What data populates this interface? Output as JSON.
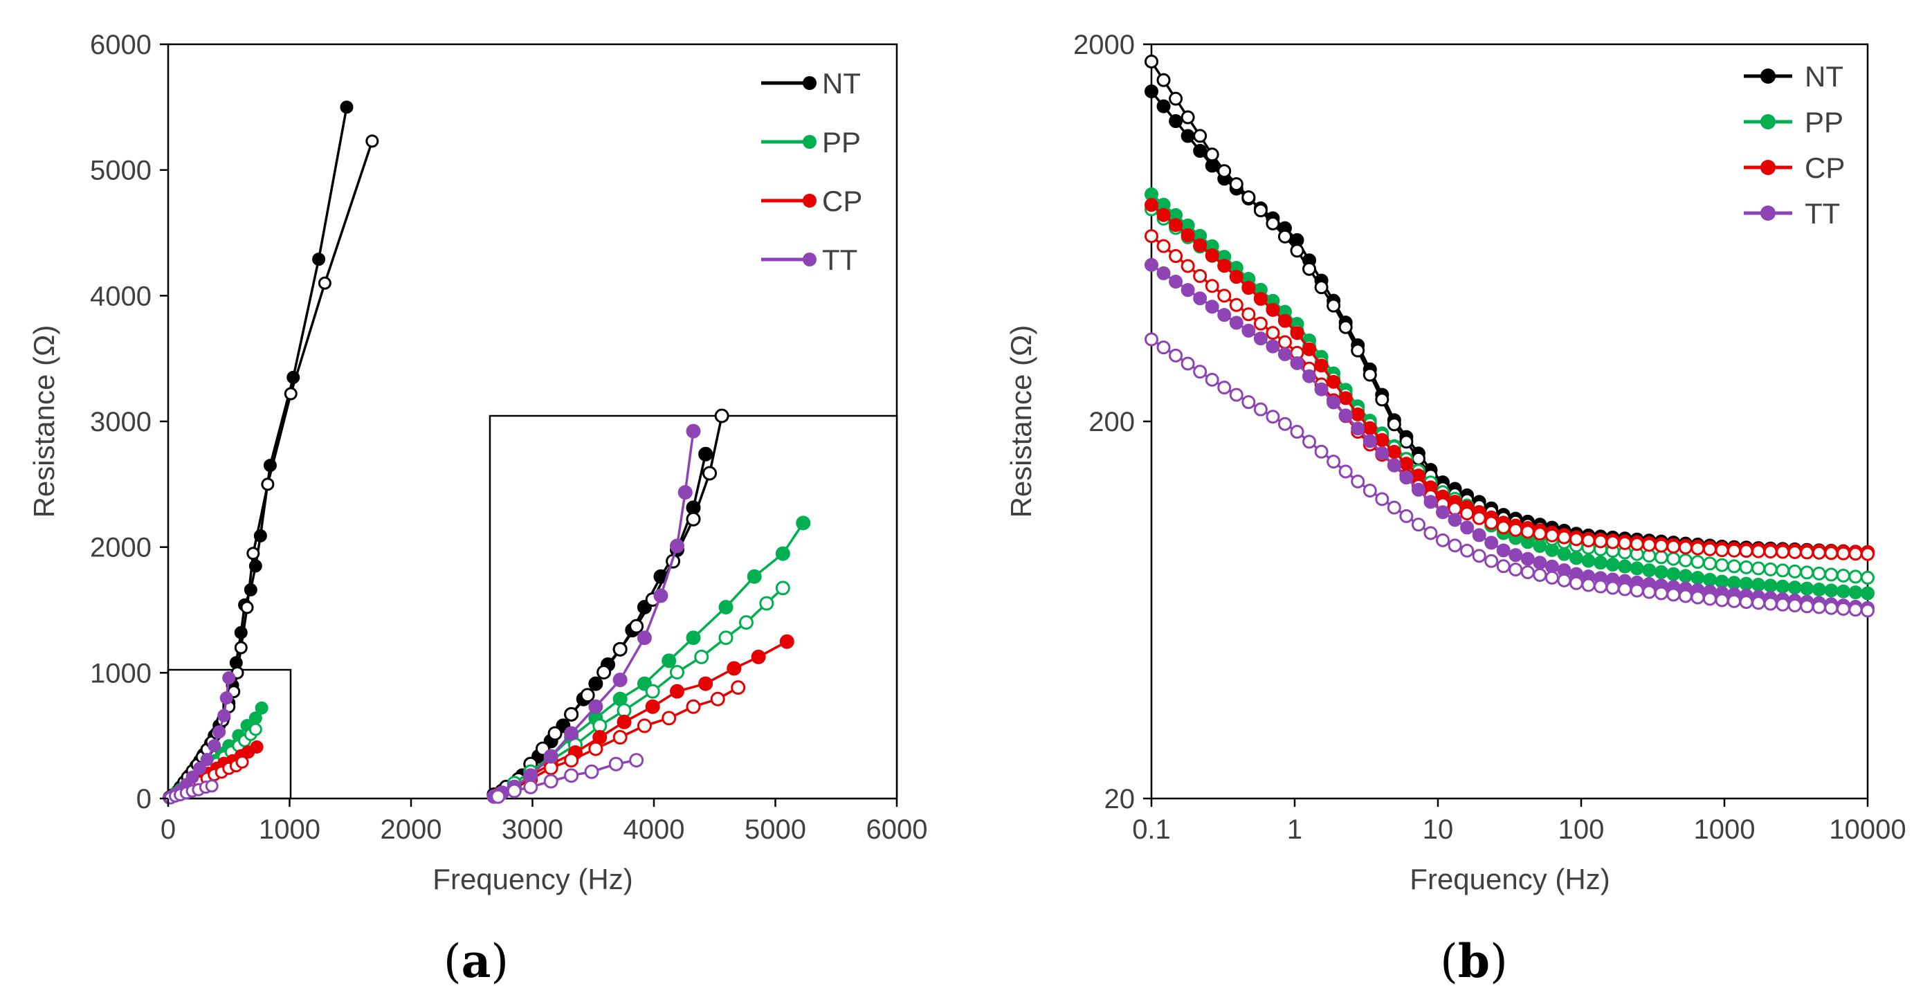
{
  "colors": {
    "NT": "#000000",
    "PP": "#00b050",
    "CP": "#e60000",
    "TT": "#8e44b5",
    "axis": "#000000",
    "text": "#404040"
  },
  "chart_data": [
    {
      "type": "scatter",
      "id": "a",
      "panel_label": "(a)",
      "panel_letter": "a",
      "xlabel": "Frequency (Hz)",
      "ylabel": "Resistance (Ω)",
      "xlim": [
        0,
        6000
      ],
      "ylim": [
        0,
        6000
      ],
      "xticks": [
        "0",
        "1000",
        "2000",
        "3000",
        "4000",
        "5000",
        "6000"
      ],
      "yticks": [
        "0",
        "1000",
        "2000",
        "3000",
        "4000",
        "5000",
        "6000"
      ],
      "legend": [
        "NT",
        "PP",
        "CP",
        "TT"
      ],
      "legend_position": "top-right",
      "inset": {
        "zoom_of_x": [
          0,
          1000
        ],
        "zoom_of_y": [
          0,
          1000
        ],
        "placed_at_x": [
          2650,
          6000
        ],
        "placed_at_y": [
          0,
          3050
        ]
      },
      "series": [
        {
          "name": "NT",
          "filled": true,
          "points": [
            [
              10,
              10
            ],
            [
              30,
              20
            ],
            [
              50,
              30
            ],
            [
              80,
              60
            ],
            [
              100,
              90
            ],
            [
              120,
              110
            ],
            [
              150,
              150
            ],
            [
              180,
              190
            ],
            [
              200,
              220
            ],
            [
              230,
              260
            ],
            [
              260,
              300
            ],
            [
              290,
              350
            ],
            [
              320,
              390
            ],
            [
              350,
              440
            ],
            [
              380,
              500
            ],
            [
              420,
              580
            ],
            [
              460,
              650
            ],
            [
              500,
              760
            ],
            [
              530,
              900
            ],
            [
              560,
              1080
            ],
            [
              600,
              1320
            ],
            [
              630,
              1540
            ],
            [
              680,
              1660
            ],
            [
              720,
              1850
            ],
            [
              760,
              2090
            ],
            [
              840,
              2650
            ],
            [
              1030,
              3350
            ],
            [
              1240,
              4290
            ],
            [
              1470,
              5500
            ]
          ]
        },
        {
          "name": "NT",
          "filled": false,
          "points": [
            [
              10,
              10
            ],
            [
              40,
              30
            ],
            [
              70,
              50
            ],
            [
              100,
              90
            ],
            [
              130,
              130
            ],
            [
              160,
              170
            ],
            [
              200,
              220
            ],
            [
              240,
              270
            ],
            [
              280,
              330
            ],
            [
              320,
              390
            ],
            [
              360,
              450
            ],
            [
              400,
              520
            ],
            [
              450,
              620
            ],
            [
              500,
              730
            ],
            [
              540,
              850
            ],
            [
              570,
              1000
            ],
            [
              600,
              1200
            ],
            [
              650,
              1520
            ],
            [
              700,
              1950
            ],
            [
              820,
              2500
            ],
            [
              1010,
              3220
            ],
            [
              1290,
              4100
            ],
            [
              1680,
              5230
            ]
          ]
        },
        {
          "name": "PP",
          "filled": true,
          "points": [
            [
              20,
              10
            ],
            [
              60,
              40
            ],
            [
              100,
              70
            ],
            [
              150,
              110
            ],
            [
              200,
              160
            ],
            [
              260,
              210
            ],
            [
              320,
              260
            ],
            [
              380,
              300
            ],
            [
              440,
              360
            ],
            [
              500,
              420
            ],
            [
              580,
              500
            ],
            [
              650,
              580
            ],
            [
              720,
              640
            ],
            [
              770,
              720
            ]
          ]
        },
        {
          "name": "PP",
          "filled": false,
          "points": [
            [
              20,
              10
            ],
            [
              60,
              40
            ],
            [
              100,
              70
            ],
            [
              150,
              100
            ],
            [
              210,
              140
            ],
            [
              270,
              190
            ],
            [
              330,
              230
            ],
            [
              400,
              280
            ],
            [
              460,
              330
            ],
            [
              520,
              370
            ],
            [
              580,
              420
            ],
            [
              630,
              460
            ],
            [
              680,
              510
            ],
            [
              720,
              550
            ]
          ]
        },
        {
          "name": "CP",
          "filled": true,
          "points": [
            [
              20,
              10
            ],
            [
              60,
              30
            ],
            [
              100,
              60
            ],
            [
              150,
              90
            ],
            [
              210,
              120
            ],
            [
              270,
              160
            ],
            [
              330,
              200
            ],
            [
              400,
              240
            ],
            [
              460,
              280
            ],
            [
              530,
              300
            ],
            [
              600,
              340
            ],
            [
              660,
              370
            ],
            [
              730,
              410
            ]
          ]
        },
        {
          "name": "CP",
          "filled": false,
          "points": [
            [
              20,
              10
            ],
            [
              60,
              30
            ],
            [
              100,
              50
            ],
            [
              150,
              80
            ],
            [
              200,
              100
            ],
            [
              260,
              130
            ],
            [
              320,
              160
            ],
            [
              380,
              190
            ],
            [
              440,
              210
            ],
            [
              500,
              240
            ],
            [
              560,
              260
            ],
            [
              610,
              290
            ]
          ]
        },
        {
          "name": "TT",
          "filled": true,
          "points": [
            [
              10,
              5
            ],
            [
              30,
              15
            ],
            [
              60,
              30
            ],
            [
              100,
              60
            ],
            [
              150,
              110
            ],
            [
              200,
              170
            ],
            [
              260,
              240
            ],
            [
              320,
              310
            ],
            [
              380,
              420
            ],
            [
              420,
              530
            ],
            [
              460,
              660
            ],
            [
              480,
              800
            ],
            [
              500,
              960
            ]
          ]
        },
        {
          "name": "TT",
          "filled": false,
          "points": [
            [
              20,
              5
            ],
            [
              60,
              20
            ],
            [
              100,
              30
            ],
            [
              150,
              45
            ],
            [
              200,
              60
            ],
            [
              250,
              70
            ],
            [
              310,
              90
            ],
            [
              360,
              100
            ]
          ]
        }
      ]
    },
    {
      "type": "scatter",
      "id": "b",
      "panel_label": "(b)",
      "panel_letter": "b",
      "xlabel": "Frequency (Hz)",
      "ylabel": "Resistance (Ω)",
      "xscale": "log",
      "yscale": "log",
      "xlim": [
        0.1,
        10000
      ],
      "ylim": [
        20,
        2000
      ],
      "xticks": [
        "0.1",
        "1",
        "10",
        "100",
        "1000",
        "10000"
      ],
      "yticks": [
        "20",
        "200",
        "2000"
      ],
      "legend": [
        "NT",
        "PP",
        "CP",
        "TT"
      ],
      "legend_position": "top-right",
      "series": [
        {
          "name": "NT",
          "filled": true,
          "points": [
            [
              0.1,
              1500
            ],
            [
              0.3,
              900
            ],
            [
              1,
              620
            ],
            [
              2,
              400
            ],
            [
              3,
              300
            ],
            [
              5,
              200
            ],
            [
              10,
              140
            ],
            [
              30,
              112
            ],
            [
              100,
              100
            ],
            [
              1000,
              93
            ],
            [
              10000,
              90
            ]
          ]
        },
        {
          "name": "NT",
          "filled": false,
          "points": [
            [
              0.1,
              1800
            ],
            [
              0.3,
              950
            ],
            [
              1,
              580
            ],
            [
              2,
              390
            ],
            [
              3,
              290
            ],
            [
              5,
              195
            ],
            [
              10,
              135
            ],
            [
              30,
              110
            ],
            [
              100,
              98
            ],
            [
              1000,
              92
            ],
            [
              10000,
              90
            ]
          ]
        },
        {
          "name": "PP",
          "filled": true,
          "points": [
            [
              0.1,
              800
            ],
            [
              0.3,
              560
            ],
            [
              1,
              370
            ],
            [
              3,
              210
            ],
            [
              10,
              130
            ],
            [
              30,
              100
            ],
            [
              100,
              86
            ],
            [
              1000,
              75
            ],
            [
              10000,
              70
            ]
          ]
        },
        {
          "name": "PP",
          "filled": false,
          "points": [
            [
              0.1,
              730
            ],
            [
              0.3,
              530
            ],
            [
              1,
              355
            ],
            [
              3,
              205
            ],
            [
              10,
              132
            ],
            [
              30,
              105
            ],
            [
              100,
              93
            ],
            [
              1000,
              83
            ],
            [
              10000,
              77
            ]
          ]
        },
        {
          "name": "CP",
          "filled": true,
          "points": [
            [
              0.1,
              750
            ],
            [
              0.3,
              530
            ],
            [
              1,
              350
            ],
            [
              3,
              200
            ],
            [
              10,
              128
            ],
            [
              30,
              107
            ],
            [
              100,
              98
            ],
            [
              1000,
              92
            ],
            [
              10000,
              90
            ]
          ]
        },
        {
          "name": "CP",
          "filled": false,
          "points": [
            [
              0.1,
              620
            ],
            [
              0.3,
              440
            ],
            [
              1,
              310
            ],
            [
              3,
              180
            ],
            [
              10,
              122
            ],
            [
              30,
              104
            ],
            [
              100,
              97
            ],
            [
              1000,
              91
            ],
            [
              10000,
              89
            ]
          ]
        },
        {
          "name": "TT",
          "filled": true,
          "points": [
            [
              0.1,
              520
            ],
            [
              0.3,
              390
            ],
            [
              1,
              290
            ],
            [
              3,
              185
            ],
            [
              10,
              117
            ],
            [
              30,
              90
            ],
            [
              100,
              78
            ],
            [
              1000,
              70
            ],
            [
              10000,
              64
            ]
          ]
        },
        {
          "name": "TT",
          "filled": false,
          "points": [
            [
              0.1,
              330
            ],
            [
              0.3,
              250
            ],
            [
              1,
              190
            ],
            [
              3,
              135
            ],
            [
              10,
              98
            ],
            [
              30,
              82
            ],
            [
              100,
              74
            ],
            [
              1000,
              67
            ],
            [
              10000,
              63
            ]
          ]
        }
      ]
    }
  ]
}
